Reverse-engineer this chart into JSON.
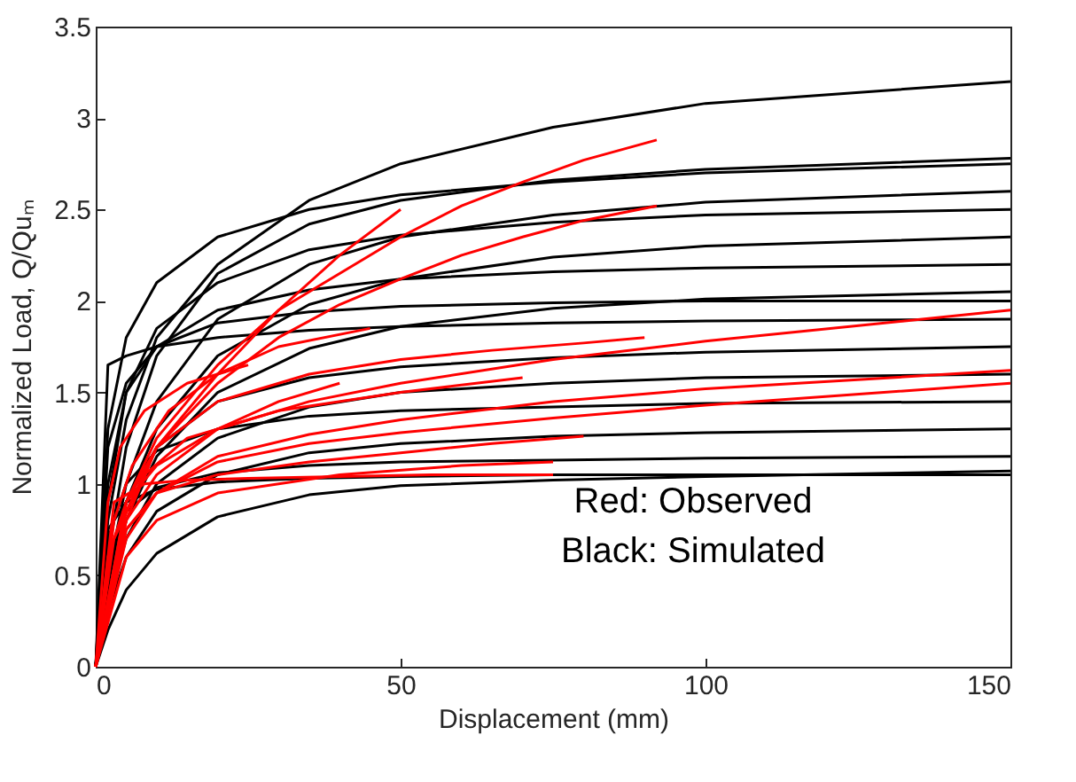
{
  "chart_data": {
    "type": "line",
    "xlabel": "Displacement (mm)",
    "ylabel": "Normalized Load, Q/Quₘ",
    "xlim": [
      0,
      150
    ],
    "xticks": [
      0,
      50,
      100,
      150
    ],
    "ylim": [
      0,
      3.5
    ],
    "yticks": [
      0,
      0.5,
      1,
      1.5,
      2,
      2.5,
      3,
      3.5
    ],
    "annotations": [
      "Red: Observed",
      "Black: Simulated"
    ],
    "x": [
      0,
      2,
      5,
      10,
      20,
      35,
      50,
      75,
      100,
      150
    ],
    "series": [
      {
        "color": "#000000",
        "values": [
          0,
          0.8,
          1.35,
          1.8,
          2.2,
          2.55,
          2.75,
          2.95,
          3.08,
          3.2
        ]
      },
      {
        "color": "#000000",
        "values": [
          0,
          0.6,
          1.2,
          1.7,
          2.15,
          2.42,
          2.55,
          2.66,
          2.72,
          2.78
        ]
      },
      {
        "color": "#000000",
        "values": [
          0,
          1.3,
          1.8,
          2.1,
          2.35,
          2.5,
          2.58,
          2.65,
          2.7,
          2.75
        ]
      },
      {
        "color": "#000000",
        "values": [
          0,
          0.5,
          1.0,
          1.45,
          1.9,
          2.2,
          2.35,
          2.47,
          2.54,
          2.6
        ]
      },
      {
        "color": "#000000",
        "values": [
          0,
          0.9,
          1.5,
          1.85,
          2.1,
          2.28,
          2.36,
          2.43,
          2.47,
          2.5
        ]
      },
      {
        "color": "#000000",
        "values": [
          0,
          0.45,
          0.9,
          1.3,
          1.7,
          1.98,
          2.12,
          2.24,
          2.3,
          2.35
        ]
      },
      {
        "color": "#000000",
        "values": [
          0,
          1.0,
          1.5,
          1.75,
          1.95,
          2.06,
          2.12,
          2.16,
          2.18,
          2.2
        ]
      },
      {
        "color": "#000000",
        "values": [
          0,
          0.4,
          0.8,
          1.15,
          1.5,
          1.74,
          1.86,
          1.96,
          2.01,
          2.05
        ]
      },
      {
        "color": "#000000",
        "values": [
          0,
          1.2,
          1.55,
          1.75,
          1.88,
          1.94,
          1.97,
          1.99,
          2.0,
          2.0
        ]
      },
      {
        "color": "#000000",
        "values": [
          0,
          1.65,
          1.7,
          1.75,
          1.8,
          1.84,
          1.86,
          1.88,
          1.89,
          1.9
        ]
      },
      {
        "color": "#000000",
        "values": [
          0,
          0.5,
          0.9,
          1.2,
          1.45,
          1.58,
          1.64,
          1.69,
          1.72,
          1.75
        ]
      },
      {
        "color": "#000000",
        "values": [
          0,
          0.35,
          0.7,
          1.0,
          1.25,
          1.42,
          1.5,
          1.55,
          1.58,
          1.6
        ]
      },
      {
        "color": "#000000",
        "values": [
          0,
          0.7,
          1.0,
          1.18,
          1.3,
          1.37,
          1.4,
          1.42,
          1.44,
          1.45
        ]
      },
      {
        "color": "#000000",
        "values": [
          0,
          0.3,
          0.6,
          0.85,
          1.05,
          1.17,
          1.22,
          1.26,
          1.28,
          1.3
        ]
      },
      {
        "color": "#000000",
        "values": [
          0,
          0.6,
          0.85,
          0.98,
          1.06,
          1.1,
          1.12,
          1.13,
          1.14,
          1.15
        ]
      },
      {
        "color": "#000000",
        "values": [
          0,
          0.75,
          0.9,
          0.97,
          1.01,
          1.03,
          1.04,
          1.05,
          1.05,
          1.05
        ]
      },
      {
        "color": "#000000",
        "values": [
          0,
          0.2,
          0.42,
          0.62,
          0.82,
          0.94,
          0.99,
          1.02,
          1.04,
          1.07
        ]
      },
      {
        "color": "#ff0000",
        "x": [
          0,
          5,
          10,
          20,
          30,
          40,
          50,
          60,
          70,
          80,
          92
        ],
        "values": [
          0,
          0.9,
          1.25,
          1.65,
          1.95,
          2.15,
          2.35,
          2.52,
          2.65,
          2.77,
          2.88
        ]
      },
      {
        "color": "#ff0000",
        "x": [
          0,
          5,
          10,
          20,
          30,
          40,
          50
        ],
        "values": [
          0,
          0.8,
          1.2,
          1.6,
          1.95,
          2.25,
          2.5
        ]
      },
      {
        "color": "#ff0000",
        "x": [
          0,
          5,
          10,
          20,
          30,
          40,
          50,
          60,
          70,
          80,
          92
        ],
        "values": [
          0,
          0.85,
          1.2,
          1.55,
          1.8,
          1.98,
          2.12,
          2.25,
          2.35,
          2.44,
          2.52
        ]
      },
      {
        "color": "#ff0000",
        "x": [
          0,
          5,
          10,
          20,
          35,
          50,
          75,
          100,
          150
        ],
        "values": [
          0,
          0.8,
          1.05,
          1.3,
          1.45,
          1.55,
          1.68,
          1.78,
          1.95
        ]
      },
      {
        "color": "#ff0000",
        "x": [
          0,
          5,
          10,
          20,
          35,
          50,
          75,
          100,
          150
        ],
        "values": [
          0,
          0.7,
          0.95,
          1.15,
          1.27,
          1.35,
          1.45,
          1.52,
          1.62
        ]
      },
      {
        "color": "#ff0000",
        "x": [
          0,
          5,
          10,
          20,
          35,
          50,
          75,
          100,
          150
        ],
        "values": [
          0,
          0.75,
          0.95,
          1.12,
          1.22,
          1.28,
          1.36,
          1.43,
          1.55
        ]
      },
      {
        "color": "#ff0000",
        "x": [
          0,
          5,
          10,
          20,
          35,
          50,
          65,
          80,
          90
        ],
        "values": [
          0,
          0.9,
          1.2,
          1.45,
          1.6,
          1.68,
          1.73,
          1.77,
          1.8
        ]
      },
      {
        "color": "#ff0000",
        "x": [
          0,
          5,
          10,
          20,
          35,
          50,
          65,
          80
        ],
        "values": [
          0,
          0.75,
          0.95,
          1.05,
          1.12,
          1.17,
          1.22,
          1.26
        ]
      },
      {
        "color": "#ff0000",
        "x": [
          0,
          3,
          8,
          15,
          25,
          40,
          55,
          75
        ],
        "values": [
          0,
          0.9,
          1.0,
          1.02,
          1.03,
          1.04,
          1.05,
          1.05
        ]
      },
      {
        "color": "#ff0000",
        "x": [
          0,
          3,
          6,
          12,
          20,
          30,
          45
        ],
        "values": [
          0,
          0.8,
          1.1,
          1.4,
          1.6,
          1.75,
          1.85
        ]
      },
      {
        "color": "#ff0000",
        "x": [
          0,
          2,
          5,
          10,
          20,
          30,
          40
        ],
        "values": [
          0,
          0.6,
          0.9,
          1.1,
          1.3,
          1.45,
          1.55
        ]
      },
      {
        "color": "#ff0000",
        "x": [
          0,
          5,
          10,
          20,
          40,
          60,
          75
        ],
        "values": [
          0,
          0.6,
          0.8,
          0.95,
          1.05,
          1.1,
          1.12
        ]
      },
      {
        "color": "#ff0000",
        "x": [
          0,
          2,
          4,
          8,
          15,
          25
        ],
        "values": [
          0,
          0.9,
          1.2,
          1.4,
          1.55,
          1.65
        ]
      },
      {
        "color": "#ff0000",
        "x": [
          0,
          3,
          8,
          15,
          30,
          50,
          70
        ],
        "values": [
          0,
          0.7,
          1.05,
          1.25,
          1.4,
          1.5,
          1.58
        ]
      }
    ]
  }
}
